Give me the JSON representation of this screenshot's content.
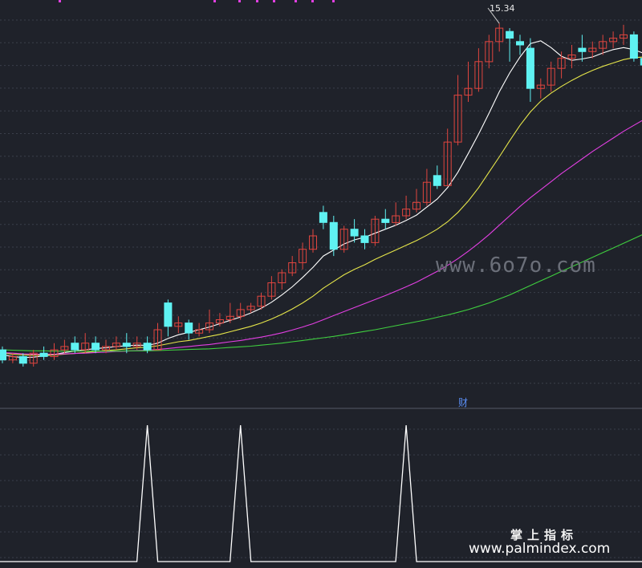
{
  "chart_data": [
    {
      "type": "candlestick",
      "title": "",
      "ylim": [
        4.5,
        15.8
      ],
      "grid": true,
      "annotations": {
        "high_label": "15.34",
        "marker": "财"
      },
      "candles": [
        [
          5.6,
          5.3,
          5.7,
          5.2
        ],
        [
          5.3,
          5.4,
          5.5,
          5.2
        ],
        [
          5.4,
          5.2,
          5.5,
          5.1
        ],
        [
          5.2,
          5.5,
          5.6,
          5.1
        ],
        [
          5.5,
          5.4,
          5.7,
          5.3
        ],
        [
          5.4,
          5.6,
          5.8,
          5.3
        ],
        [
          5.6,
          5.7,
          5.9,
          5.5
        ],
        [
          5.8,
          5.6,
          6.0,
          5.5
        ],
        [
          5.6,
          5.8,
          6.1,
          5.5
        ],
        [
          5.8,
          5.6,
          6.0,
          5.5
        ],
        [
          5.6,
          5.7,
          5.9,
          5.5
        ],
        [
          5.7,
          5.8,
          6.0,
          5.6
        ],
        [
          5.8,
          5.7,
          6.1,
          5.5
        ],
        [
          5.7,
          5.8,
          6.0,
          5.6
        ],
        [
          5.8,
          5.6,
          6.0,
          5.5
        ],
        [
          5.6,
          6.2,
          6.4,
          5.6
        ],
        [
          7.0,
          6.3,
          7.1,
          6.0
        ],
        [
          6.3,
          6.4,
          6.6,
          6.1
        ],
        [
          6.4,
          6.1,
          6.5,
          5.9
        ],
        [
          6.1,
          6.2,
          6.4,
          6.0
        ],
        [
          6.2,
          6.4,
          6.8,
          6.1
        ],
        [
          6.4,
          6.5,
          6.7,
          6.3
        ],
        [
          6.5,
          6.6,
          7.0,
          6.4
        ],
        [
          6.6,
          6.8,
          7.0,
          6.5
        ],
        [
          6.8,
          6.9,
          7.0,
          6.7
        ],
        [
          6.9,
          7.2,
          7.3,
          6.8
        ],
        [
          7.2,
          7.6,
          7.8,
          7.1
        ],
        [
          7.6,
          7.9,
          8.0,
          7.4
        ],
        [
          7.9,
          8.2,
          8.4,
          7.8
        ],
        [
          8.2,
          8.6,
          8.8,
          8.0
        ],
        [
          8.6,
          9.0,
          9.2,
          8.5
        ],
        [
          9.7,
          9.4,
          9.9,
          9.2
        ],
        [
          9.4,
          8.6,
          9.6,
          8.4
        ],
        [
          8.6,
          9.2,
          9.3,
          8.5
        ],
        [
          9.2,
          9.0,
          9.5,
          8.8
        ],
        [
          9.0,
          8.8,
          9.2,
          8.6
        ],
        [
          8.8,
          9.5,
          9.6,
          8.7
        ],
        [
          9.5,
          9.4,
          9.8,
          9.2
        ],
        [
          9.4,
          9.6,
          10.0,
          9.3
        ],
        [
          9.6,
          9.8,
          10.2,
          9.5
        ],
        [
          9.8,
          10.0,
          10.4,
          9.7
        ],
        [
          10.0,
          10.6,
          11.0,
          9.9
        ],
        [
          10.8,
          10.5,
          11.1,
          10.4
        ],
        [
          10.5,
          11.8,
          12.2,
          10.5
        ],
        [
          11.8,
          13.2,
          13.8,
          11.7
        ],
        [
          13.2,
          13.4,
          14.2,
          13.0
        ],
        [
          13.4,
          14.2,
          14.6,
          13.3
        ],
        [
          14.2,
          14.8,
          15.0,
          14.0
        ],
        [
          14.8,
          15.2,
          15.34,
          14.5
        ],
        [
          15.1,
          14.9,
          15.2,
          14.2
        ],
        [
          14.8,
          14.7,
          15.0,
          14.4
        ],
        [
          14.6,
          13.4,
          14.9,
          13.0
        ],
        [
          13.4,
          13.5,
          13.7,
          13.1
        ],
        [
          13.5,
          14.0,
          14.2,
          13.3
        ],
        [
          14.0,
          14.3,
          14.5,
          13.7
        ],
        [
          14.3,
          14.4,
          14.7,
          14.0
        ],
        [
          14.6,
          14.5,
          15.0,
          14.2
        ],
        [
          14.5,
          14.6,
          14.8,
          14.3
        ],
        [
          14.6,
          14.8,
          15.0,
          14.4
        ],
        [
          14.8,
          14.9,
          15.1,
          14.6
        ],
        [
          14.9,
          15.0,
          15.3,
          14.7
        ],
        [
          15.0,
          14.3,
          15.1,
          14.2
        ],
        [
          14.3,
          14.1,
          14.5,
          13.6
        ],
        [
          14.0,
          12.9,
          14.2,
          12.8
        ]
      ],
      "series": [
        {
          "color": "#ffffff",
          "values": [
            5.45,
            5.4,
            5.37,
            5.38,
            5.42,
            5.46,
            5.52,
            5.56,
            5.6,
            5.64,
            5.66,
            5.7,
            5.72,
            5.74,
            5.73,
            5.8,
            5.94,
            6.05,
            6.12,
            6.2,
            6.28,
            6.38,
            6.48,
            6.58,
            6.7,
            6.84,
            7.02,
            7.24,
            7.48,
            7.76,
            8.06,
            8.4,
            8.58,
            8.76,
            8.88,
            8.96,
            9.08,
            9.2,
            9.32,
            9.46,
            9.62,
            9.86,
            10.1,
            10.44,
            10.9,
            11.46,
            12.04,
            12.66,
            13.3,
            13.86,
            14.34,
            14.74,
            14.82,
            14.62,
            14.36,
            14.24,
            14.28,
            14.34,
            14.46,
            14.56,
            14.62,
            14.56,
            14.44,
            14.2
          ]
        },
        {
          "color": "#e6e64a",
          "values": [
            5.5,
            5.47,
            5.45,
            5.44,
            5.44,
            5.45,
            5.47,
            5.49,
            5.52,
            5.55,
            5.58,
            5.6,
            5.63,
            5.66,
            5.68,
            5.72,
            5.78,
            5.84,
            5.88,
            5.94,
            6.0,
            6.06,
            6.14,
            6.22,
            6.3,
            6.4,
            6.52,
            6.66,
            6.82,
            7.0,
            7.2,
            7.44,
            7.64,
            7.84,
            8.0,
            8.14,
            8.3,
            8.44,
            8.58,
            8.72,
            8.86,
            9.02,
            9.2,
            9.42,
            9.7,
            10.04,
            10.44,
            10.9,
            11.36,
            11.84,
            12.3,
            12.7,
            13.02,
            13.26,
            13.46,
            13.64,
            13.8,
            13.94,
            14.06,
            14.16,
            14.26,
            14.32,
            14.34,
            14.3
          ]
        },
        {
          "color": "#e33fe3",
          "values": [
            5.52,
            5.5,
            5.48,
            5.47,
            5.47,
            5.47,
            5.48,
            5.49,
            5.5,
            5.52,
            5.53,
            5.55,
            5.56,
            5.58,
            5.59,
            5.61,
            5.64,
            5.67,
            5.7,
            5.73,
            5.76,
            5.8,
            5.84,
            5.88,
            5.93,
            5.98,
            6.04,
            6.11,
            6.19,
            6.28,
            6.38,
            6.5,
            6.62,
            6.74,
            6.86,
            6.98,
            7.1,
            7.22,
            7.35,
            7.48,
            7.62,
            7.78,
            7.94,
            8.12,
            8.32,
            8.54,
            8.78,
            9.04,
            9.32,
            9.6,
            9.88,
            10.14,
            10.38,
            10.62,
            10.86,
            11.08,
            11.3,
            11.52,
            11.72,
            11.92,
            12.12,
            12.3,
            12.48,
            12.66
          ]
        },
        {
          "color": "#3fcf3f",
          "values": [
            5.6,
            5.59,
            5.58,
            5.57,
            5.57,
            5.56,
            5.56,
            5.56,
            5.56,
            5.56,
            5.56,
            5.56,
            5.57,
            5.57,
            5.57,
            5.58,
            5.59,
            5.6,
            5.61,
            5.62,
            5.63,
            5.65,
            5.67,
            5.69,
            5.71,
            5.74,
            5.77,
            5.8,
            5.84,
            5.88,
            5.92,
            5.96,
            6.0,
            6.05,
            6.1,
            6.15,
            6.2,
            6.26,
            6.32,
            6.38,
            6.44,
            6.5,
            6.57,
            6.64,
            6.72,
            6.8,
            6.9,
            7.0,
            7.12,
            7.24,
            7.38,
            7.52,
            7.66,
            7.8,
            7.94,
            8.08,
            8.22,
            8.36,
            8.5,
            8.64,
            8.78,
            8.92,
            9.06,
            9.2
          ]
        }
      ]
    },
    {
      "type": "line",
      "ylim": [
        0,
        1
      ],
      "signal": {
        "spikes_at_candle_index": [
          14,
          23,
          39
        ],
        "baseline": 0,
        "peak": 1
      }
    }
  ],
  "watermarks": {
    "mid": "www.6o7o.com",
    "cn": "掌上指标",
    "url": "www.palmindex.com"
  }
}
